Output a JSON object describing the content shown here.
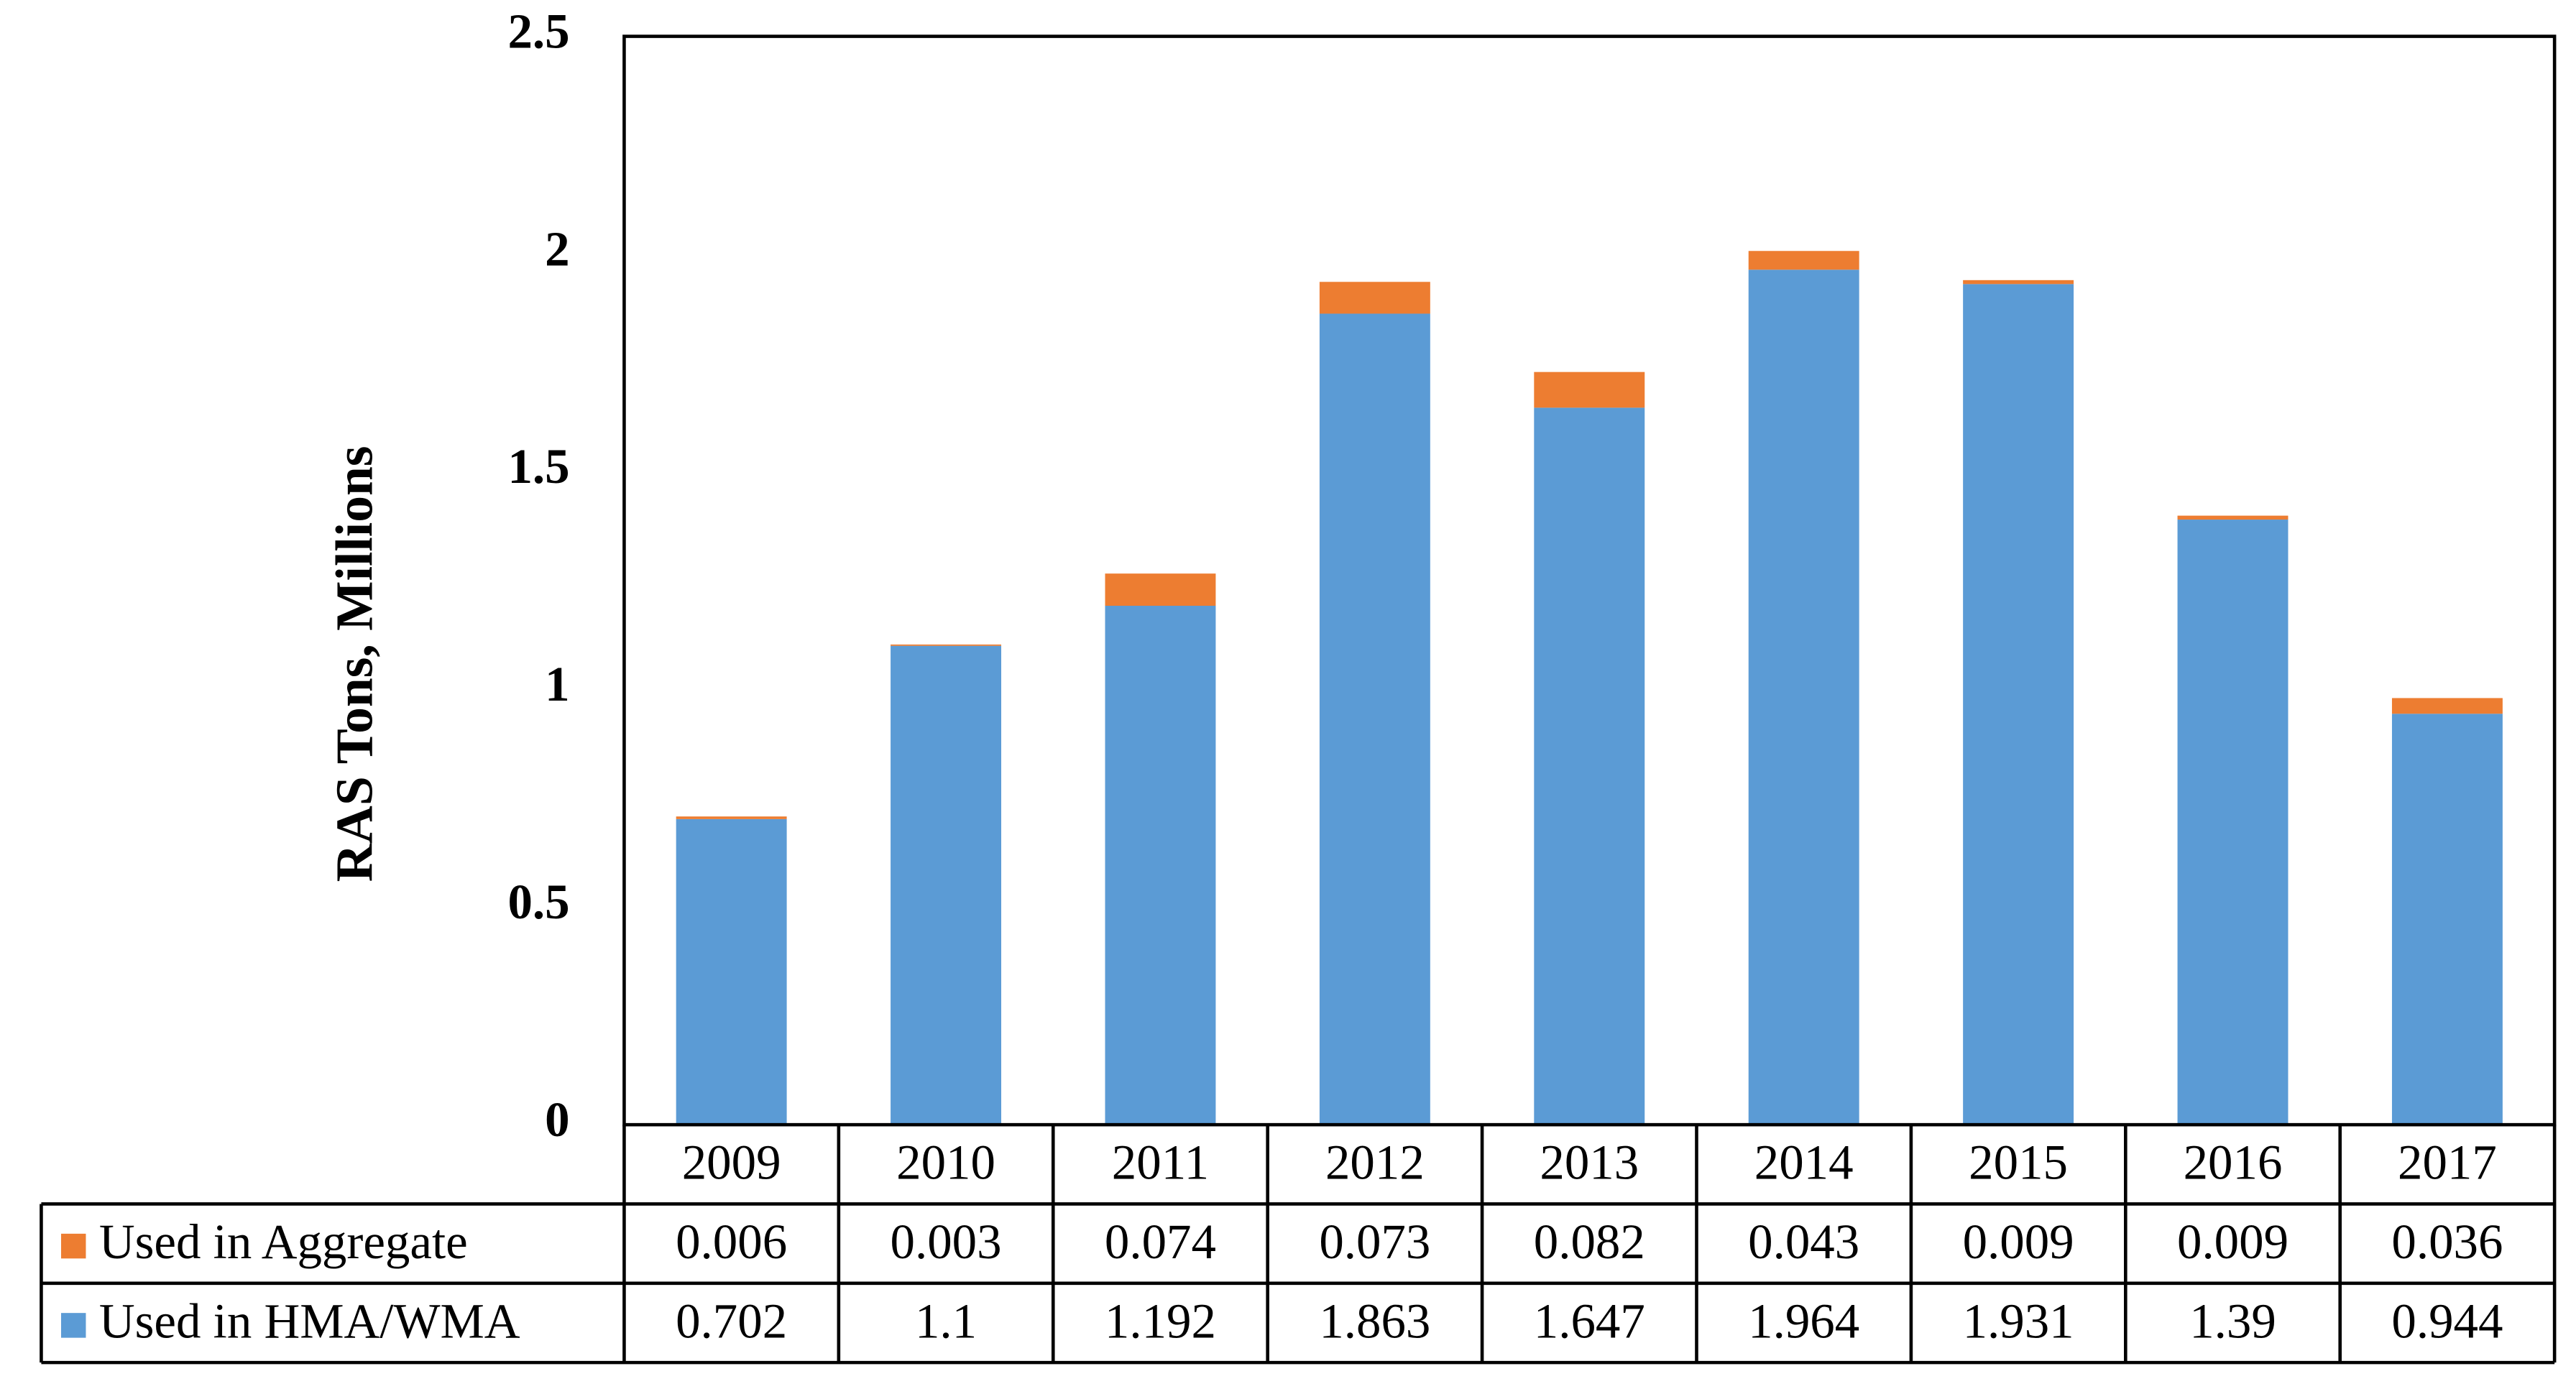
{
  "chart_data": {
    "type": "stacked-bar",
    "y_label": "RAS Tons, Millions",
    "categories": [
      "2009",
      "2010",
      "2011",
      "2012",
      "2013",
      "2014",
      "2015",
      "2016",
      "2017"
    ],
    "series": [
      {
        "name": "Used in Aggregate",
        "color": "#ed7d31",
        "values": [
          0.006,
          0.003,
          0.074,
          0.073,
          0.082,
          0.043,
          0.009,
          0.009,
          0.036
        ]
      },
      {
        "name": "Used in HMA/WMA",
        "color": "#5b9bd5",
        "values": [
          0.702,
          1.1,
          1.192,
          1.863,
          1.647,
          1.964,
          1.931,
          1.39,
          0.944
        ]
      }
    ],
    "ylim": [
      0,
      2.5
    ],
    "yticks": [
      0,
      0.5,
      1,
      1.5,
      2,
      2.5
    ],
    "grid": false
  }
}
